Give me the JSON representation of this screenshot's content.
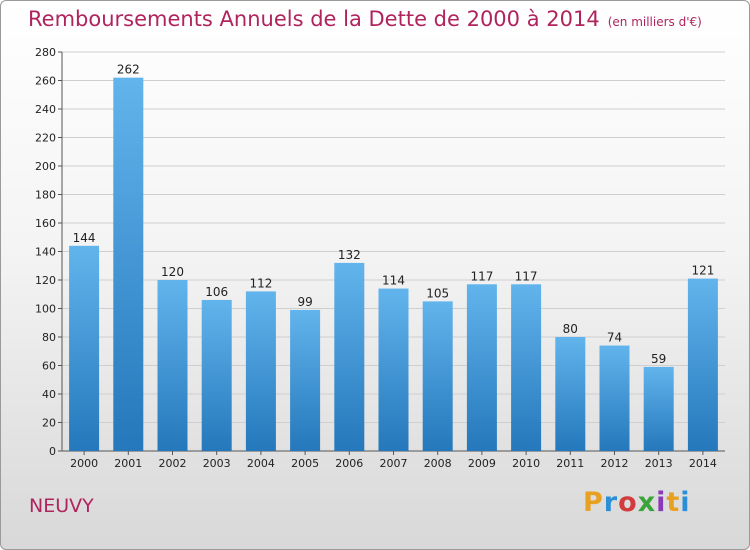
{
  "chart_data": {
    "type": "bar",
    "title": "Remboursements Annuels de la Dette de 2000 à 2014",
    "unit": "(en milliers d'€)",
    "categories": [
      "2000",
      "2001",
      "2002",
      "2003",
      "2004",
      "2005",
      "2006",
      "2007",
      "2008",
      "2009",
      "2010",
      "2011",
      "2012",
      "2013",
      "2014"
    ],
    "values": [
      144,
      262,
      120,
      106,
      112,
      99,
      132,
      114,
      105,
      117,
      117,
      80,
      74,
      59,
      121
    ],
    "ylim": [
      0,
      280
    ],
    "yticks": [
      0,
      20,
      40,
      60,
      80,
      100,
      120,
      140,
      160,
      180,
      200,
      220,
      240,
      260,
      280
    ],
    "grid": true,
    "legend": "none",
    "bar_color_light": "#62b4ec",
    "bar_color_dark": "#2478bb",
    "title_color": "#b0245e"
  },
  "footer": {
    "place": "NEUVY",
    "logo_text": "Proxiti"
  },
  "logo_colors": [
    "#e8a020",
    "#2a8fd6",
    "#d23c3c",
    "#3aa43a",
    "#8a3ab9",
    "#e8a020",
    "#2a8fd6"
  ]
}
